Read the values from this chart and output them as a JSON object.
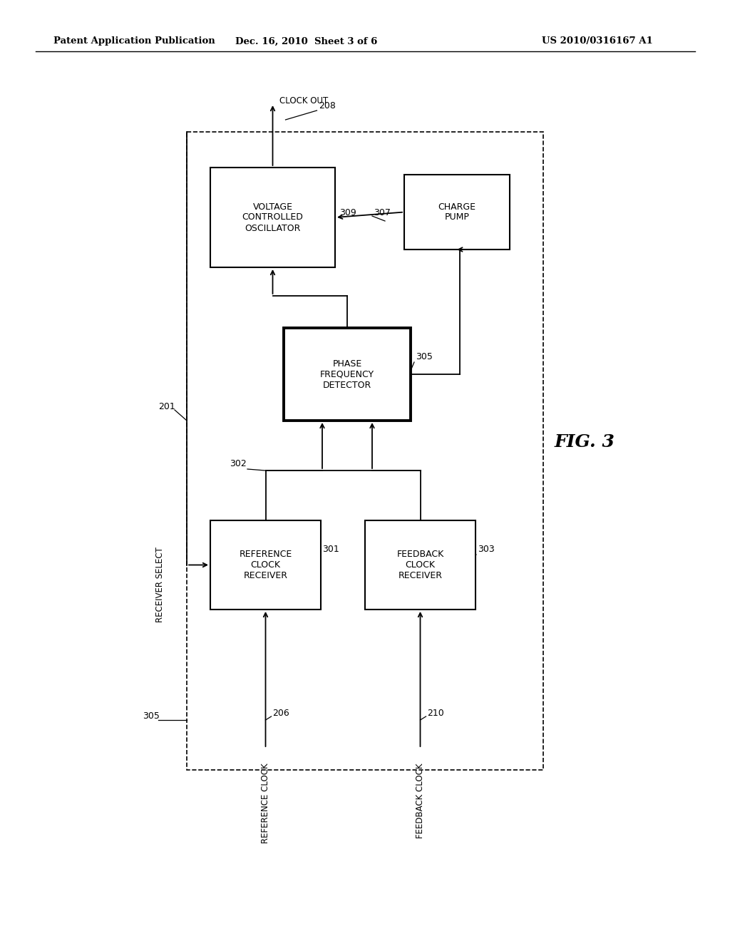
{
  "bg_color": "#ffffff",
  "header_left": "Patent Application Publication",
  "header_center": "Dec. 16, 2010  Sheet 3 of 6",
  "header_right": "US 2010/0316167 A1",
  "fig_label": "FIG. 3"
}
